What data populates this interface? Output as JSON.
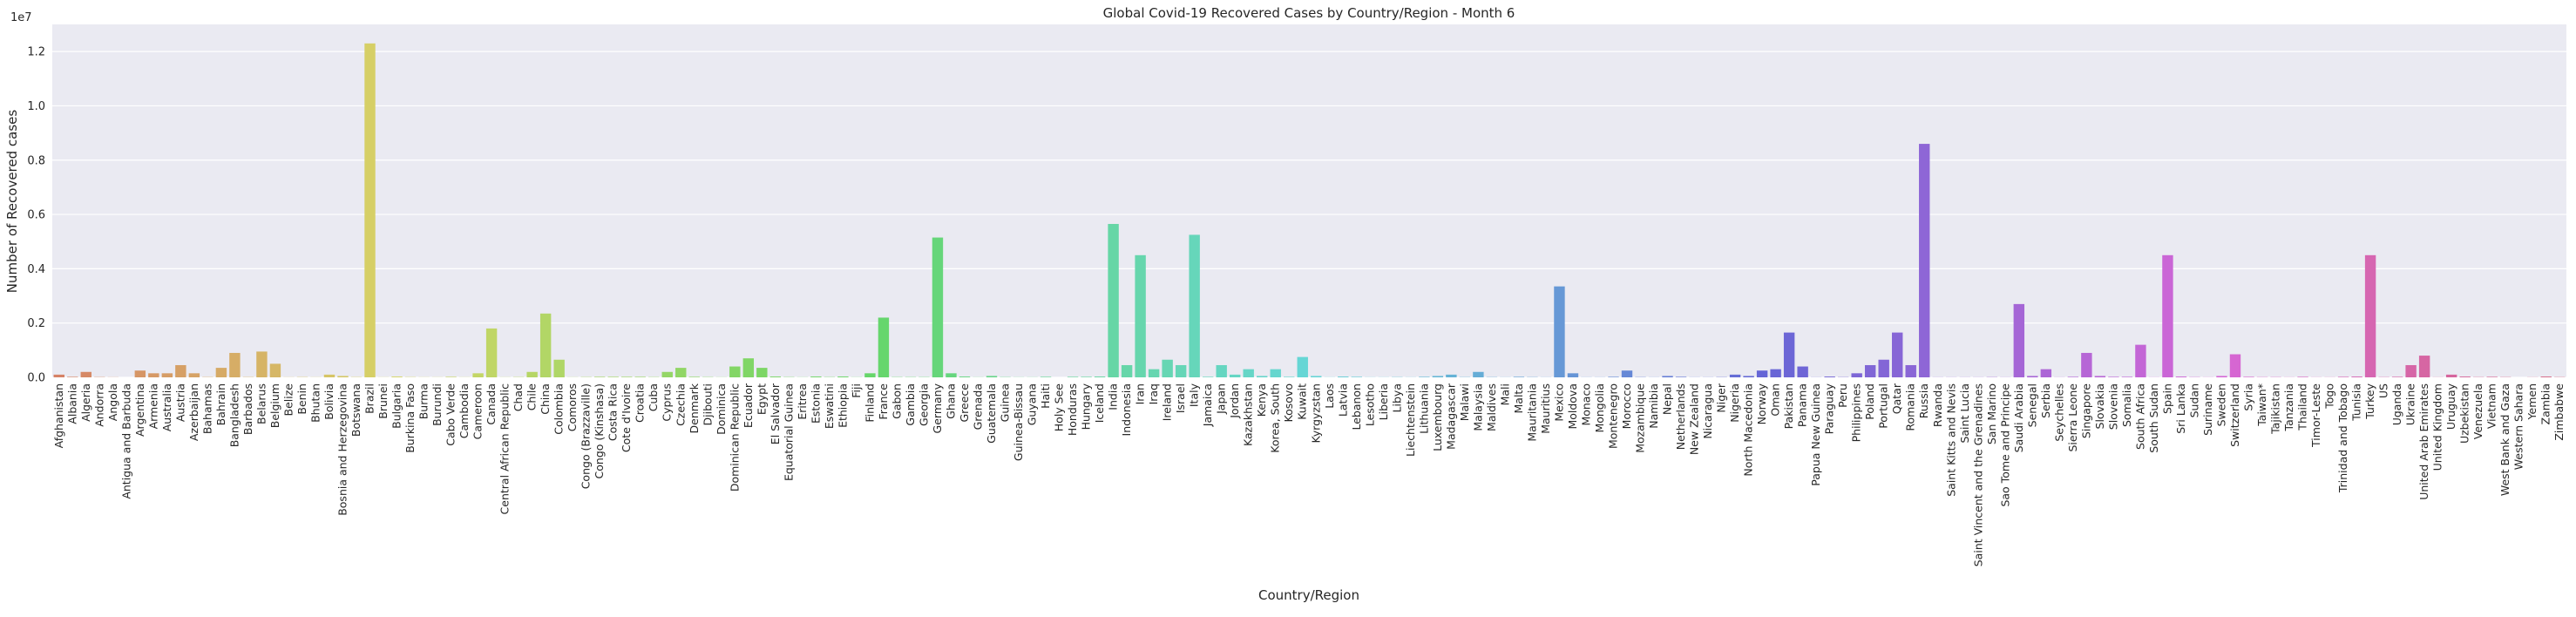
{
  "chart_data": {
    "type": "bar",
    "title": "Global Covid-19 Recovered Cases by Country/Region - Month 6",
    "xlabel": "Country/Region",
    "ylabel": "Number of Recovered cases",
    "y_offset_label": "1e7",
    "ylim": [
      0,
      13000000
    ],
    "yticks": [
      0,
      2000000,
      4000000,
      6000000,
      8000000,
      10000000,
      12000000
    ],
    "ytick_labels": [
      "0.0",
      "0.2",
      "0.4",
      "0.6",
      "0.8",
      "1.0",
      "1.2"
    ],
    "grid": true,
    "legend": "none",
    "background": "#eaeaf2",
    "palette": "husl (seaborn default hue cycle across categories)",
    "categories": [
      "Afghanistan",
      "Albania",
      "Algeria",
      "Andorra",
      "Angola",
      "Antigua and Barbuda",
      "Argentina",
      "Armenia",
      "Australia",
      "Austria",
      "Azerbaijan",
      "Bahamas",
      "Bahrain",
      "Bangladesh",
      "Barbados",
      "Belarus",
      "Belgium",
      "Belize",
      "Benin",
      "Bhutan",
      "Bolivia",
      "Bosnia and Herzegovina",
      "Botswana",
      "Brazil",
      "Brunei",
      "Bulgaria",
      "Burkina Faso",
      "Burma",
      "Burundi",
      "Cabo Verde",
      "Cambodia",
      "Cameroon",
      "Canada",
      "Central African Republic",
      "Chad",
      "Chile",
      "China",
      "Colombia",
      "Comoros",
      "Congo (Brazzaville)",
      "Congo (Kinshasa)",
      "Costa Rica",
      "Cote d'Ivoire",
      "Croatia",
      "Cuba",
      "Cyprus",
      "Czechia",
      "Denmark",
      "Djibouti",
      "Dominica",
      "Dominican Republic",
      "Ecuador",
      "Egypt",
      "El Salvador",
      "Equatorial Guinea",
      "Eritrea",
      "Estonia",
      "Eswatini",
      "Ethiopia",
      "Fiji",
      "Finland",
      "France",
      "Gabon",
      "Gambia",
      "Georgia",
      "Germany",
      "Ghana",
      "Greece",
      "Grenada",
      "Guatemala",
      "Guinea",
      "Guinea-Bissau",
      "Guyana",
      "Haiti",
      "Holy See",
      "Honduras",
      "Hungary",
      "Iceland",
      "India",
      "Indonesia",
      "Iran",
      "Iraq",
      "Ireland",
      "Israel",
      "Italy",
      "Jamaica",
      "Japan",
      "Jordan",
      "Kazakhstan",
      "Kenya",
      "Korea, South",
      "Kosovo",
      "Kuwait",
      "Kyrgyzstan",
      "Laos",
      "Latvia",
      "Lebanon",
      "Lesotho",
      "Liberia",
      "Libya",
      "Liechtenstein",
      "Lithuania",
      "Luxembourg",
      "Madagascar",
      "Malawi",
      "Malaysia",
      "Maldives",
      "Mali",
      "Malta",
      "Mauritania",
      "Mauritius",
      "Mexico",
      "Moldova",
      "Monaco",
      "Mongolia",
      "Montenegro",
      "Morocco",
      "Mozambique",
      "Namibia",
      "Nepal",
      "Netherlands",
      "New Zealand",
      "Nicaragua",
      "Niger",
      "Nigeria",
      "North Macedonia",
      "Norway",
      "Oman",
      "Pakistan",
      "Panama",
      "Papua New Guinea",
      "Paraguay",
      "Peru",
      "Philippines",
      "Poland",
      "Portugal",
      "Qatar",
      "Romania",
      "Russia",
      "Rwanda",
      "Saint Kitts and Nevis",
      "Saint Lucia",
      "Saint Vincent and the Grenadines",
      "San Marino",
      "Sao Tome and Principe",
      "Saudi Arabia",
      "Senegal",
      "Serbia",
      "Seychelles",
      "Sierra Leone",
      "Singapore",
      "Slovakia",
      "Slovenia",
      "Somalia",
      "South Africa",
      "South Sudan",
      "Spain",
      "Sri Lanka",
      "Sudan",
      "Suriname",
      "Sweden",
      "Switzerland",
      "Syria",
      "Taiwan*",
      "Tajikistan",
      "Tanzania",
      "Thailand",
      "Timor-Leste",
      "Togo",
      "Trinidad and Tobago",
      "Tunisia",
      "Turkey",
      "US",
      "Uganda",
      "Ukraine",
      "United Arab Emirates",
      "United Kingdom",
      "Uruguay",
      "Uzbekistan",
      "Venezuela",
      "Vietnam",
      "West Bank and Gaza",
      "Western Sahara",
      "Yemen",
      "Zambia",
      "Zimbabwe"
    ],
    "values": [
      100000,
      20000,
      200000,
      10000,
      5000,
      0,
      250000,
      150000,
      150000,
      450000,
      150000,
      10000,
      350000,
      900000,
      10000,
      950000,
      500000,
      5000,
      10000,
      5000,
      100000,
      50000,
      10000,
      12300000,
      5000,
      30000,
      10000,
      5000,
      5000,
      20000,
      5000,
      150000,
      1800000,
      5000,
      10000,
      200000,
      2350000,
      650000,
      5000,
      10000,
      20000,
      20000,
      20000,
      20000,
      10000,
      200000,
      350000,
      20000,
      10000,
      5000,
      400000,
      700000,
      350000,
      30000,
      10000,
      5000,
      30000,
      10000,
      30000,
      5000,
      150000,
      2200000,
      10000,
      10000,
      10000,
      5150000,
      150000,
      30000,
      5000,
      50000,
      10000,
      5000,
      5000,
      20000,
      0,
      20000,
      20000,
      30000,
      5650000,
      450000,
      4500000,
      300000,
      650000,
      450000,
      5250000,
      20000,
      450000,
      100000,
      300000,
      50000,
      300000,
      20000,
      750000,
      50000,
      5000,
      30000,
      20000,
      5000,
      5000,
      10000,
      5000,
      20000,
      50000,
      100000,
      10000,
      200000,
      10000,
      5000,
      20000,
      10000,
      5000,
      3350000,
      150000,
      5000,
      5000,
      20000,
      250000,
      10000,
      5000,
      50000,
      20000,
      5000,
      5000,
      10000,
      100000,
      50000,
      250000,
      300000,
      1650000,
      400000,
      5000,
      30000,
      10000,
      150000,
      450000,
      650000,
      1650000,
      450000,
      8600000,
      5000,
      5000,
      5000,
      5000,
      10000,
      5000,
      2700000,
      50000,
      300000,
      5000,
      20000,
      900000,
      50000,
      20000,
      20000,
      1200000,
      5000,
      4500000,
      30000,
      10000,
      5000,
      50000,
      850000,
      20000,
      10000,
      10000,
      5000,
      20000,
      5000,
      5000,
      20000,
      30000,
      4500000,
      10000,
      20000,
      450000,
      800000,
      5000,
      100000,
      30000,
      10000,
      20000,
      10000,
      0,
      5000,
      30000,
      10000
    ]
  }
}
